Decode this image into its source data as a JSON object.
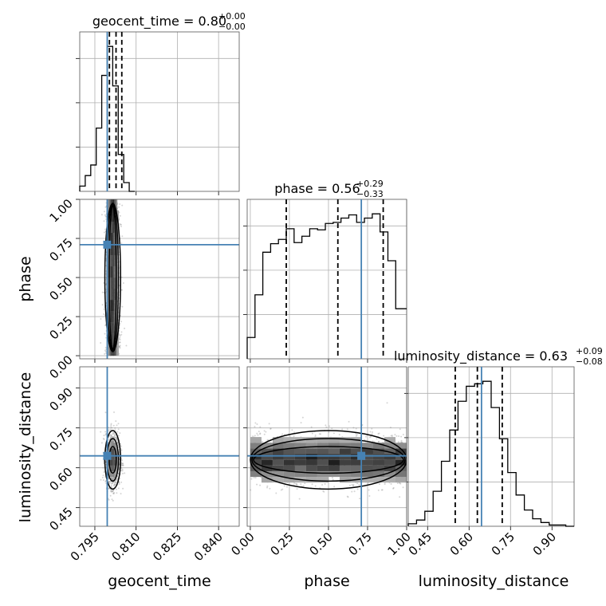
{
  "chart_data": {
    "type": "corner",
    "grid": true,
    "truth_color": "#4682b4",
    "hist_color": "#000000",
    "parameters": [
      {
        "name": "geocent_time",
        "axis_label": "geocent_time",
        "range": [
          0.7895,
          0.8475
        ],
        "ticks": [
          0.795,
          0.81,
          0.825,
          0.84
        ],
        "tick_labels": [
          "0.795",
          "0.810",
          "0.825",
          "0.840"
        ],
        "truth": 0.7995,
        "quantiles": [
          0.8003,
          0.8027,
          0.8048
        ],
        "title_value": "0.80",
        "title_plus": "+0.00",
        "title_minus": "−0.00",
        "hist_edges": [
          0.7895,
          0.7915,
          0.7935,
          0.7955,
          0.7975,
          0.7995,
          0.8015,
          0.8035,
          0.8055,
          0.8075,
          0.8095
        ],
        "hist_counts": [
          6,
          18,
          30,
          72,
          132,
          165,
          120,
          42,
          10,
          0
        ]
      },
      {
        "name": "phase",
        "axis_label": "phase",
        "range": [
          -0.02,
          1.0
        ],
        "ticks": [
          0.0,
          0.25,
          0.5,
          0.75,
          1.0
        ],
        "tick_labels": [
          "0.00",
          "0.25",
          "0.50",
          "0.75",
          "1.00"
        ],
        "truth": 0.71,
        "quantiles": [
          0.23,
          0.56,
          0.85
        ],
        "title_value": "0.56",
        "title_plus": "+0.29",
        "title_minus": "−0.33",
        "hist_edges": [
          -0.02,
          0.03,
          0.08,
          0.13,
          0.18,
          0.23,
          0.28,
          0.33,
          0.38,
          0.43,
          0.48,
          0.53,
          0.58,
          0.63,
          0.68,
          0.73,
          0.78,
          0.83,
          0.88,
          0.93,
          0.98,
          1.0
        ],
        "hist_counts": [
          20,
          60,
          100,
          108,
          112,
          122,
          109,
          115,
          122,
          121,
          127,
          128,
          132,
          135,
          128,
          132,
          136,
          119,
          92,
          47,
          47
        ]
      },
      {
        "name": "luminosity_distance",
        "axis_label": "luminosity_distance",
        "range": [
          0.38,
          0.98
        ],
        "ticks": [
          0.45,
          0.6,
          0.75,
          0.9
        ],
        "tick_labels": [
          "0.45",
          "0.60",
          "0.75",
          "0.90"
        ],
        "truth": 0.645,
        "quantiles": [
          0.55,
          0.63,
          0.72
        ],
        "title_value": "0.63",
        "title_plus": "+0.09",
        "title_minus": "−0.08",
        "hist_edges": [
          0.38,
          0.41,
          0.44,
          0.47,
          0.5,
          0.53,
          0.56,
          0.59,
          0.62,
          0.65,
          0.68,
          0.71,
          0.74,
          0.77,
          0.8,
          0.83,
          0.86,
          0.89,
          0.92,
          0.95,
          0.98
        ],
        "hist_counts": [
          2,
          5,
          12,
          28,
          52,
          77,
          100,
          112,
          114,
          116,
          95,
          70,
          43,
          25,
          13,
          6,
          3,
          1,
          1,
          0
        ]
      }
    ],
    "scatter_pairs": [
      {
        "x": 0,
        "y": 1
      },
      {
        "x": 0,
        "y": 2
      },
      {
        "x": 1,
        "y": 2
      }
    ]
  }
}
